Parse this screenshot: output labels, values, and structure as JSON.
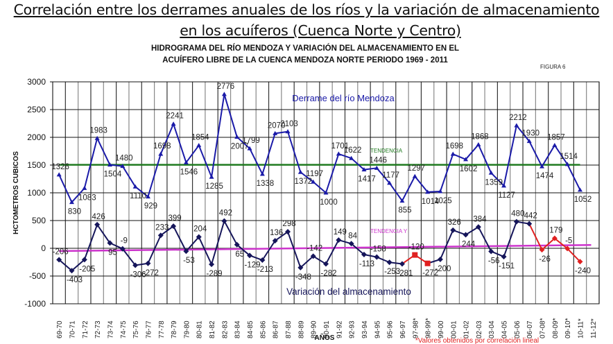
{
  "header": {
    "title_line1": "Correlación entre los derrames anuales de los ríos y la variación de almacenamiento",
    "title_line2": "en los acuíferos (Cuenca Norte y Centro)"
  },
  "chart_data": {
    "type": "line",
    "title_line1": "HIDROGRAMA DEL RÍO MENDOZA Y VARIACIÓN DEL ALMACENAMIENTO EN EL",
    "title_line2": "ACUÍFERO LIBRE DE LA CUENCA MENDOZA NORTE PERIODO 1969 - 2011",
    "figure_label": "FIGURA 6",
    "xlabel": "AÑOS",
    "ylabel": "HCTOMETROS CUBICOS",
    "ylim": [
      -1000,
      3000
    ],
    "yticks": [
      -1000,
      -500,
      0,
      500,
      1000,
      1500,
      2000,
      2500,
      3000
    ],
    "grid": true,
    "footnote": "*Valores obtenidos por correlación lineal",
    "categories": [
      "69-70",
      "70-71",
      "71-72",
      "72-73",
      "73-74",
      "74-75",
      "75-76",
      "76-77",
      "77-78",
      "78-79",
      "79-80",
      "80-81",
      "81-82",
      "82-83",
      "83-84",
      "84-85",
      "85-86",
      "86-87",
      "87-88",
      "88-89",
      "89-90",
      "90-91",
      "91-92",
      "92-93",
      "93-94",
      "94-95",
      "95-96",
      "96-97",
      "97-98*",
      "98-99*",
      "99-00",
      "00-01",
      "01-02",
      "02-03",
      "03-04",
      "04-05",
      "05-06",
      "06-07",
      "07-08*",
      "08-09*",
      "09-10*",
      "10-11*",
      "11-12*"
    ],
    "series": [
      {
        "name": "Derrame del río Mendoza",
        "color": "#1a1aa8",
        "values": [
          1326,
          830,
          1083,
          1983,
          1504,
          1480,
          1110,
          929,
          1698,
          2241,
          1546,
          1854,
          1285,
          2776,
          2007,
          1799,
          1338,
          2070,
          2103,
          1372,
          1197,
          1000,
          1701,
          1622,
          1417,
          1446,
          1177,
          855,
          1297,
          1014,
          1025,
          1698,
          1602,
          1868,
          1359,
          1127,
          2212,
          1930,
          1474,
          1857,
          1514,
          1052,
          null
        ]
      },
      {
        "name": "Variación del almacenamiento",
        "color": "#15155a",
        "estimated_color": "#e02020",
        "values": [
          -206,
          -403,
          -205,
          426,
          95,
          -9,
          -306,
          -272,
          233,
          399,
          -53,
          204,
          -289,
          492,
          65,
          -129,
          -213,
          136,
          298,
          -348,
          -142,
          -282,
          149,
          84,
          -113,
          -158,
          -253,
          -281,
          -120,
          -272,
          -200,
          326,
          244,
          384,
          -56,
          -151,
          480,
          442,
          -26,
          179,
          -5,
          -240,
          null
        ],
        "estimated": [
          28,
          29,
          38,
          39,
          40,
          41
        ]
      }
    ],
    "trendlines": [
      {
        "name": "TENDENCIA",
        "color": "#1f7a1f",
        "start": 1505,
        "end": 1505
      },
      {
        "name": "TENDENCIA Y",
        "color": "#cc33cc",
        "start": -50,
        "end": 60
      }
    ]
  }
}
